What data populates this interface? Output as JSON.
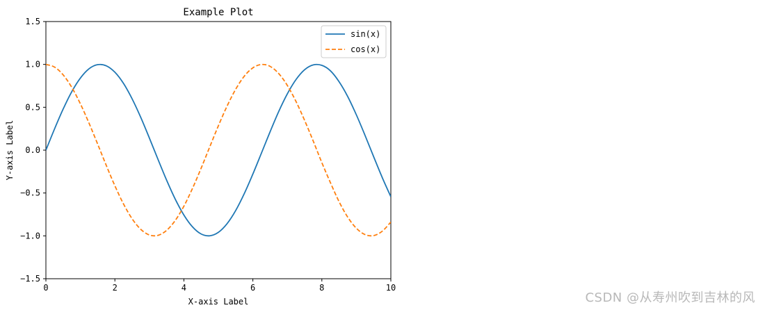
{
  "chart_data": {
    "type": "line",
    "title": "Example Plot",
    "xlabel": "X-axis Label",
    "ylabel": "Y-axis Label",
    "xlim": [
      0,
      10
    ],
    "ylim": [
      -1.5,
      1.5
    ],
    "xticks": [
      "0",
      "2",
      "4",
      "6",
      "8",
      "10"
    ],
    "yticks": [
      "1.5",
      "1.0",
      "0.5",
      "0.0",
      "-0.5",
      "-1.0",
      "-1.5"
    ],
    "grid": false,
    "legend_position": "top-right",
    "series": [
      {
        "name": "sin(x)",
        "color": "#1f77b4",
        "style": "solid",
        "x": [
          0,
          0.25,
          0.5,
          0.75,
          1,
          1.25,
          1.5,
          1.75,
          2,
          2.25,
          2.5,
          2.75,
          3,
          3.25,
          3.5,
          3.75,
          4,
          4.25,
          4.5,
          4.75,
          5,
          5.25,
          5.5,
          5.75,
          6,
          6.25,
          6.5,
          6.75,
          7,
          7.25,
          7.5,
          7.75,
          8,
          8.25,
          8.5,
          8.75,
          9,
          9.25,
          9.5,
          9.75,
          10
        ],
        "y": [
          0,
          0.247,
          0.479,
          0.682,
          0.841,
          0.949,
          0.997,
          0.984,
          0.909,
          0.778,
          0.598,
          0.382,
          0.141,
          -0.108,
          -0.351,
          -0.572,
          -0.757,
          -0.895,
          -0.978,
          -0.999,
          -0.959,
          -0.859,
          -0.706,
          -0.508,
          -0.279,
          -0.033,
          0.215,
          0.451,
          0.657,
          0.823,
          0.938,
          0.994,
          0.989,
          0.925,
          0.798,
          0.625,
          0.412,
          0.174,
          -0.075,
          -0.319,
          -0.544
        ]
      },
      {
        "name": "cos(x)",
        "color": "#ff7f0e",
        "style": "dashed",
        "x": [
          0,
          0.25,
          0.5,
          0.75,
          1,
          1.25,
          1.5,
          1.75,
          2,
          2.25,
          2.5,
          2.75,
          3,
          3.25,
          3.5,
          3.75,
          4,
          4.25,
          4.5,
          4.75,
          5,
          5.25,
          5.5,
          5.75,
          6,
          6.25,
          6.5,
          6.75,
          7,
          7.25,
          7.5,
          7.75,
          8,
          8.25,
          8.5,
          8.75,
          9,
          9.25,
          9.5,
          9.75,
          10
        ],
        "y": [
          1,
          0.969,
          0.878,
          0.732,
          0.54,
          0.315,
          0.071,
          -0.178,
          -0.416,
          -0.628,
          -0.801,
          -0.924,
          -0.99,
          -0.994,
          -0.936,
          -0.82,
          -0.654,
          -0.446,
          -0.211,
          0.038,
          0.284,
          0.512,
          0.709,
          0.862,
          0.96,
          0.999,
          0.977,
          0.893,
          0.754,
          0.568,
          0.347,
          0.106,
          -0.146,
          -0.381,
          -0.602,
          -0.782,
          -0.911,
          -0.985,
          -0.997,
          -0.946,
          -0.839
        ]
      }
    ]
  },
  "watermark": "CSDN @从寿州吹到吉林的风"
}
